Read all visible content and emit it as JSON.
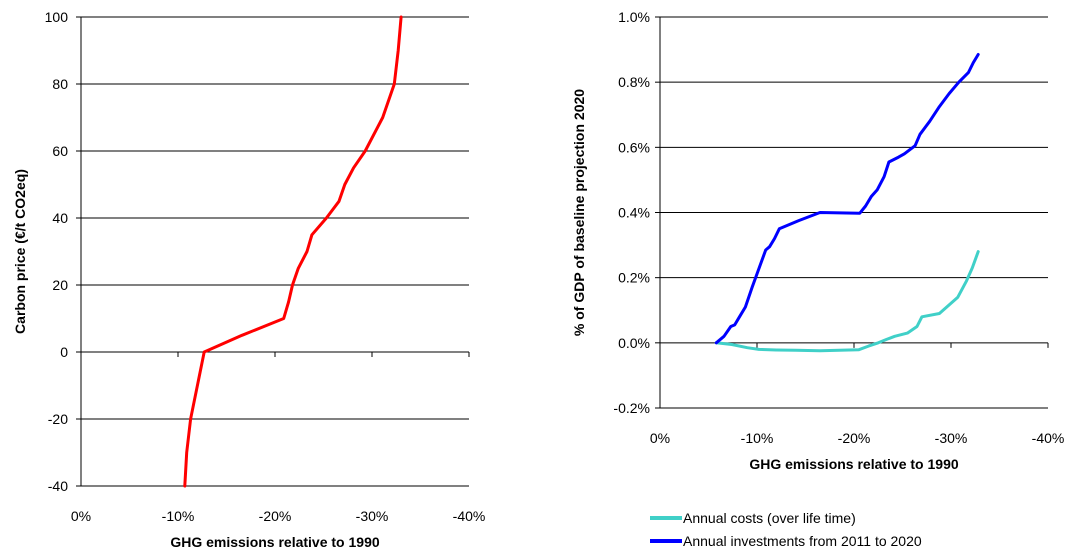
{
  "chart_data": [
    {
      "type": "line",
      "xlabel": "GHG emissions relative to 1990",
      "ylabel": "Carbon price (€/t CO2eq)",
      "xlim": [
        0,
        -40
      ],
      "ylim": [
        -40,
        100
      ],
      "x_ticks": [
        "0%",
        "-10%",
        "-20%",
        "-30%",
        "-40%"
      ],
      "y_ticks": [
        "-40",
        "-20",
        "0",
        "20",
        "40",
        "60",
        "80",
        "100"
      ],
      "grid": "horizontal",
      "colors": {
        "series": "#ff0000"
      },
      "series": [
        {
          "points": [
            [
              -10.7,
              -40
            ],
            [
              -10.9,
              -30
            ],
            [
              -11.3,
              -20
            ],
            [
              -12,
              -10
            ],
            [
              -12.7,
              0
            ],
            [
              -16.6,
              5
            ],
            [
              -20.9,
              10
            ],
            [
              -21.4,
              15
            ],
            [
              -21.8,
              20
            ],
            [
              -22.4,
              25
            ],
            [
              -23.3,
              30
            ],
            [
              -23.8,
              35
            ],
            [
              -25.3,
              40
            ],
            [
              -26.6,
              45
            ],
            [
              -27.2,
              50
            ],
            [
              -28.1,
              55
            ],
            [
              -29.3,
              60
            ],
            [
              -31.1,
              70
            ],
            [
              -32.3,
              80
            ],
            [
              -32.7,
              90
            ],
            [
              -33,
              100
            ]
          ]
        }
      ]
    },
    {
      "type": "line",
      "xlabel": "GHG emissions relative to 1990",
      "ylabel": "% of GDP of baseline projection 2020",
      "xlim": [
        0,
        -40
      ],
      "ylim": [
        -0.2,
        1.0
      ],
      "x_ticks": [
        "0%",
        "-10%",
        "-20%",
        "-30%",
        "-40%"
      ],
      "y_ticks": [
        "-0.2%",
        "0.0%",
        "0.2%",
        "0.4%",
        "0.6%",
        "0.8%",
        "1.0%"
      ],
      "grid": "horizontal",
      "legend": "bottom",
      "series": [
        {
          "name": "Annual costs (over life time)",
          "color": "#40d0c8",
          "points": [
            [
              -5.8,
              0
            ],
            [
              -7.4,
              -0.005
            ],
            [
              -9,
              -0.015
            ],
            [
              -10.2,
              -0.02
            ],
            [
              -12,
              -0.022
            ],
            [
              -14,
              -0.023
            ],
            [
              -16.5,
              -0.024
            ],
            [
              -18.5,
              -0.023
            ],
            [
              -20.5,
              -0.021
            ],
            [
              -21.5,
              -0.01
            ],
            [
              -22.5,
              0
            ],
            [
              -23.3,
              0.01
            ],
            [
              -24.2,
              0.02
            ],
            [
              -25.5,
              0.03
            ],
            [
              -26.5,
              0.05
            ],
            [
              -27,
              0.08
            ],
            [
              -28.8,
              0.09
            ],
            [
              -30.7,
              0.14
            ],
            [
              -31.6,
              0.19
            ],
            [
              -32.2,
              0.23
            ],
            [
              -32.8,
              0.28
            ]
          ]
        },
        {
          "name": "Annual investments from 2011 to 2020",
          "color": "#0000ff",
          "points": [
            [
              -5.8,
              0
            ],
            [
              -6.6,
              0.02
            ],
            [
              -7.3,
              0.05
            ],
            [
              -7.7,
              0.055
            ],
            [
              -8.2,
              0.08
            ],
            [
              -8.8,
              0.11
            ],
            [
              -9.5,
              0.17
            ],
            [
              -10.1,
              0.22
            ],
            [
              -10.9,
              0.285
            ],
            [
              -11.3,
              0.295
            ],
            [
              -11.8,
              0.32
            ],
            [
              -12.3,
              0.35
            ],
            [
              -14.3,
              0.375
            ],
            [
              -16.5,
              0.4
            ],
            [
              -20.6,
              0.398
            ],
            [
              -21.2,
              0.42
            ],
            [
              -21.8,
              0.45
            ],
            [
              -22.4,
              0.47
            ],
            [
              -23.1,
              0.51
            ],
            [
              -23.6,
              0.555
            ],
            [
              -24.6,
              0.57
            ],
            [
              -25.2,
              0.58
            ],
            [
              -26.3,
              0.605
            ],
            [
              -26.8,
              0.64
            ],
            [
              -27.8,
              0.68
            ],
            [
              -28.8,
              0.725
            ],
            [
              -29.8,
              0.765
            ],
            [
              -30.8,
              0.8
            ],
            [
              -31.8,
              0.83
            ],
            [
              -32.3,
              0.86
            ],
            [
              -32.8,
              0.885
            ]
          ]
        }
      ]
    }
  ]
}
